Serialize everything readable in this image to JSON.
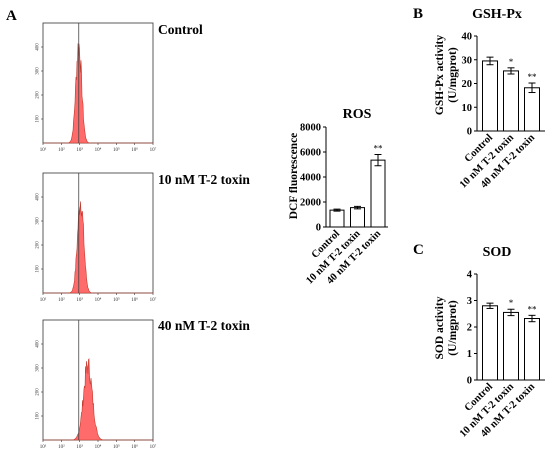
{
  "figure": {
    "panel_letters": [
      "A",
      "B",
      "C"
    ]
  },
  "chart_data": [
    {
      "id": "flow",
      "type": "area",
      "x_tick_labels": [
        "10¹",
        "10²",
        "10³",
        "10⁴",
        "10⁵",
        "10⁶",
        "10⁷"
      ],
      "y_tick_labels": [
        "400",
        "300",
        "200",
        "100"
      ],
      "fill_color": "#ff6a6a",
      "histograms": [
        {
          "name": "Control",
          "peak_log": 2.95,
          "width": 0.16,
          "peak": 420
        },
        {
          "name": "10 nM T-2 toxin",
          "peak_log": 3.05,
          "width": 0.17,
          "peak": 400
        },
        {
          "name": "40 nM T-2 toxin",
          "peak_log": 3.45,
          "width": 0.24,
          "peak": 320
        }
      ]
    },
    {
      "id": "ros",
      "type": "bar",
      "title": "ROS",
      "ylabel": "DCF fluorescence",
      "categories": [
        "Control",
        "10 nM T-2 toxin",
        "40 nM T-2 toxin"
      ],
      "values": [
        1350,
        1550,
        5350
      ],
      "errors": [
        80,
        100,
        450
      ],
      "significance": [
        "",
        "",
        "**"
      ],
      "ylim": [
        0,
        8000
      ],
      "yticks": [
        0,
        2000,
        4000,
        6000,
        8000
      ],
      "bar_color": "#ffffff"
    },
    {
      "id": "gsh",
      "type": "bar",
      "title": "GSH-Px",
      "ylabel": "GSH-Px activity",
      "ylabel2": "(U/mgprot)",
      "categories": [
        "Control",
        "10 nM T-2 toxin",
        "40 nM T-2 toxin"
      ],
      "values": [
        29.5,
        25.3,
        18.2
      ],
      "errors": [
        1.6,
        1.3,
        2.0
      ],
      "significance": [
        "",
        "*",
        "**"
      ],
      "ylim": [
        0,
        40
      ],
      "yticks": [
        0,
        10,
        20,
        30,
        40
      ],
      "bar_color": "#ffffff"
    },
    {
      "id": "sod",
      "type": "bar",
      "title": "SOD",
      "ylabel": "SOD activity",
      "ylabel2": "(U/mgprot)",
      "categories": [
        "Control",
        "10 nM T-2 toxin",
        "40 nM T-2 toxin"
      ],
      "values": [
        2.8,
        2.55,
        2.32
      ],
      "errors": [
        0.1,
        0.12,
        0.12
      ],
      "significance": [
        "",
        "*",
        "**"
      ],
      "ylim": [
        0,
        4
      ],
      "yticks": [
        0,
        1,
        2,
        3,
        4
      ],
      "bar_color": "#ffffff"
    }
  ]
}
